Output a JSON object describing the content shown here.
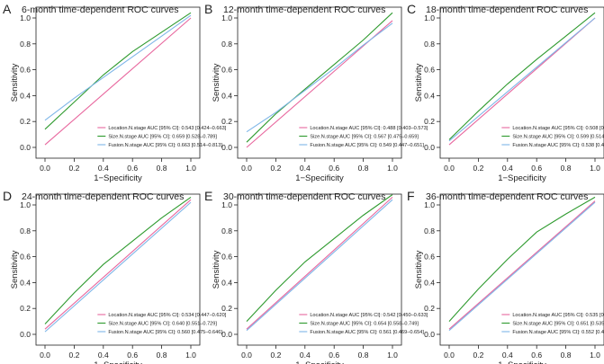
{
  "figure": {
    "background": "#ffffff",
    "axis_color": "#222222",
    "series_colors": {
      "location": "#e8679e",
      "size": "#2e9a2e",
      "fusion": "#7fb6e8"
    }
  },
  "chart_data": [
    {
      "type": "line",
      "panel_letter": "A",
      "title": "6-month time-dependent ROC curves",
      "xlabel": "1−Specificity",
      "ylabel": "Sensitivity",
      "xlim": [
        0,
        1.0
      ],
      "ylim": [
        0,
        1.0
      ],
      "xticks": [
        "0.0",
        "0.2",
        "0.4",
        "0.6",
        "0.8",
        "1.0"
      ],
      "yticks": [
        "0.0",
        "0.2",
        "0.4",
        "0.6",
        "0.8",
        "1.0"
      ],
      "legend_position": "bottom-right",
      "series": [
        {
          "key": "location",
          "name": "Location.N.stage AUC [95% CI]: 0.543 [0.424–0.663]",
          "x": [
            0,
            1.0
          ],
          "y": [
            0.02,
            1.0
          ]
        },
        {
          "key": "size",
          "name": "Size.N.stage AUC [95% CI]: 0.659 [0.528–0.789]",
          "x": [
            0,
            0.2,
            0.4,
            0.6,
            0.8,
            1.0
          ],
          "y": [
            0.14,
            0.35,
            0.56,
            0.74,
            0.89,
            1.04
          ]
        },
        {
          "key": "fusion",
          "name": "Fusion.N.stage AUC [95% CI]: 0.663 [0.514–0.813]",
          "x": [
            0,
            0.2,
            0.4,
            0.6,
            0.8,
            1.0
          ],
          "y": [
            0.21,
            0.38,
            0.54,
            0.7,
            0.86,
            1.02
          ]
        }
      ]
    },
    {
      "type": "line",
      "panel_letter": "B",
      "title": "12-month time-dependent ROC curves",
      "xlabel": "1−Specificity",
      "ylabel": "Sensitivity",
      "xlim": [
        0,
        1.0
      ],
      "ylim": [
        0,
        1.0
      ],
      "xticks": [
        "0.0",
        "0.2",
        "0.4",
        "0.6",
        "0.8",
        "1.0"
      ],
      "yticks": [
        "0.0",
        "0.2",
        "0.4",
        "0.6",
        "0.8",
        "1.0"
      ],
      "legend_position": "bottom-right",
      "series": [
        {
          "key": "location",
          "name": "Location.N.stage AUC [95% CI]: 0.488 [0.403–0.573]",
          "x": [
            0,
            1.0
          ],
          "y": [
            0.0,
            0.98
          ]
        },
        {
          "key": "size",
          "name": "Size.N.stage AUC [95% CI]: 0.567 [0.475–0.659]",
          "x": [
            0,
            0.2,
            0.4,
            0.6,
            0.8,
            1.0
          ],
          "y": [
            0.04,
            0.26,
            0.45,
            0.64,
            0.83,
            1.04
          ]
        },
        {
          "key": "fusion",
          "name": "Fusion.N.stage AUC [95% CI]: 0.549 [0.447–0.651]",
          "x": [
            0,
            0.2,
            0.4,
            0.6,
            0.8,
            1.0
          ],
          "y": [
            0.12,
            0.27,
            0.44,
            0.61,
            0.79,
            0.96
          ]
        }
      ]
    },
    {
      "type": "line",
      "panel_letter": "C",
      "title": "18-month time-dependent ROC curves",
      "xlabel": "1−Specificity",
      "ylabel": "Sensitivity",
      "xlim": [
        0,
        1.0
      ],
      "ylim": [
        0,
        1.0
      ],
      "xticks": [
        "0.0",
        "0.2",
        "0.4",
        "0.6",
        "0.8",
        "1.0"
      ],
      "yticks": [
        "0.0",
        "0.2",
        "0.4",
        "0.6",
        "0.8",
        "1.0"
      ],
      "legend_position": "bottom-right",
      "series": [
        {
          "key": "location",
          "name": "Location.N.stage AUC [95% CI]: 0.508 [0.427–0.589]",
          "x": [
            0,
            1.0
          ],
          "y": [
            0.02,
            1.0
          ]
        },
        {
          "key": "size",
          "name": "Size.N.stage AUC [95% CI]: 0.599 [0.514–0.684]",
          "x": [
            0,
            0.2,
            0.4,
            0.6,
            0.8,
            1.0
          ],
          "y": [
            0.06,
            0.28,
            0.49,
            0.68,
            0.86,
            1.04
          ]
        },
        {
          "key": "fusion",
          "name": "Fusion.N.stage AUC [95% CI]: 0.538 [0.452–0.624]",
          "x": [
            0,
            1.0
          ],
          "y": [
            0.05,
            1.0
          ]
        }
      ]
    },
    {
      "type": "line",
      "panel_letter": "D",
      "title": "24-month time-dependent ROC curves",
      "xlabel": "1−Specificity",
      "ylabel": "Sensitivity",
      "xlim": [
        0,
        1.0
      ],
      "ylim": [
        0,
        1.0
      ],
      "xticks": [
        "0.0",
        "0.2",
        "0.4",
        "0.6",
        "0.8",
        "1.0"
      ],
      "yticks": [
        "0.0",
        "0.2",
        "0.4",
        "0.6",
        "0.8",
        "1.0"
      ],
      "legend_position": "bottom-right",
      "series": [
        {
          "key": "location",
          "name": "Location.N.stage AUC [95% CI]: 0.534 [0.447–0.620]",
          "x": [
            0,
            1.0
          ],
          "y": [
            0.04,
            1.04
          ]
        },
        {
          "key": "size",
          "name": "Size.N.stage AUC [95% CI]: 0.640 [0.551–0.729]",
          "x": [
            0,
            0.2,
            0.4,
            0.6,
            0.8,
            1.0
          ],
          "y": [
            0.08,
            0.32,
            0.54,
            0.72,
            0.9,
            1.06
          ]
        },
        {
          "key": "fusion",
          "name": "Fusion.N.stage AUC [95% CI]: 0.560 [0.475–0.646]",
          "x": [
            0,
            1.0
          ],
          "y": [
            0.02,
            1.02
          ]
        }
      ]
    },
    {
      "type": "line",
      "panel_letter": "E",
      "title": "30-month time-dependent ROC curves",
      "xlabel": "1−Specificity",
      "ylabel": "Sensitivity",
      "xlim": [
        0,
        1.0
      ],
      "ylim": [
        0,
        1.0
      ],
      "xticks": [
        "0.0",
        "0.2",
        "0.4",
        "0.6",
        "0.8",
        "1.0"
      ],
      "yticks": [
        "0.0",
        "0.2",
        "0.4",
        "0.6",
        "0.8",
        "1.0"
      ],
      "legend_position": "bottom-right",
      "series": [
        {
          "key": "location",
          "name": "Location.N.stage AUC [95% CI]: 0.542 [0.450–0.633]",
          "x": [
            0,
            1.0
          ],
          "y": [
            0.04,
            1.06
          ]
        },
        {
          "key": "size",
          "name": "Size.N.stage AUC [95% CI]: 0.654 [0.558–0.749]",
          "x": [
            0,
            0.2,
            0.4,
            0.6,
            0.8,
            1.0
          ],
          "y": [
            0.1,
            0.34,
            0.56,
            0.74,
            0.92,
            1.08
          ]
        },
        {
          "key": "fusion",
          "name": "Fusion.N.stage AUC [95% CI]: 0.561 [0.469–0.654]",
          "x": [
            0,
            1.0
          ],
          "y": [
            0.03,
            1.04
          ]
        }
      ]
    },
    {
      "type": "line",
      "panel_letter": "F",
      "title": "36-month time-dependent ROC curves",
      "xlabel": "1−Specificity",
      "ylabel": "Sensitivity",
      "xlim": [
        0,
        1.0
      ],
      "ylim": [
        0,
        1.0
      ],
      "xticks": [
        "0.0",
        "0.2",
        "0.4",
        "0.6",
        "0.8",
        "1.0"
      ],
      "yticks": [
        "0.0",
        "0.2",
        "0.4",
        "0.6",
        "0.8",
        "1.0"
      ],
      "legend_position": "bottom-right",
      "series": [
        {
          "key": "location",
          "name": "Location.N.stage AUC [95% CI]: 0.535 [0.427–0.643]",
          "x": [
            0,
            1.0
          ],
          "y": [
            0.04,
            1.03
          ]
        },
        {
          "key": "size",
          "name": "Size.N.stage AUC [95% CI]: 0.651 [0.535–0.767]",
          "x": [
            0,
            0.2,
            0.4,
            0.6,
            0.8,
            1.0
          ],
          "y": [
            0.1,
            0.35,
            0.58,
            0.79,
            0.93,
            1.06
          ]
        },
        {
          "key": "fusion",
          "name": "Fusion.N.stage AUC [95% CI]: 0.552 [0.444–0.660]",
          "x": [
            0,
            1.0
          ],
          "y": [
            0.03,
            1.02
          ]
        }
      ]
    }
  ]
}
